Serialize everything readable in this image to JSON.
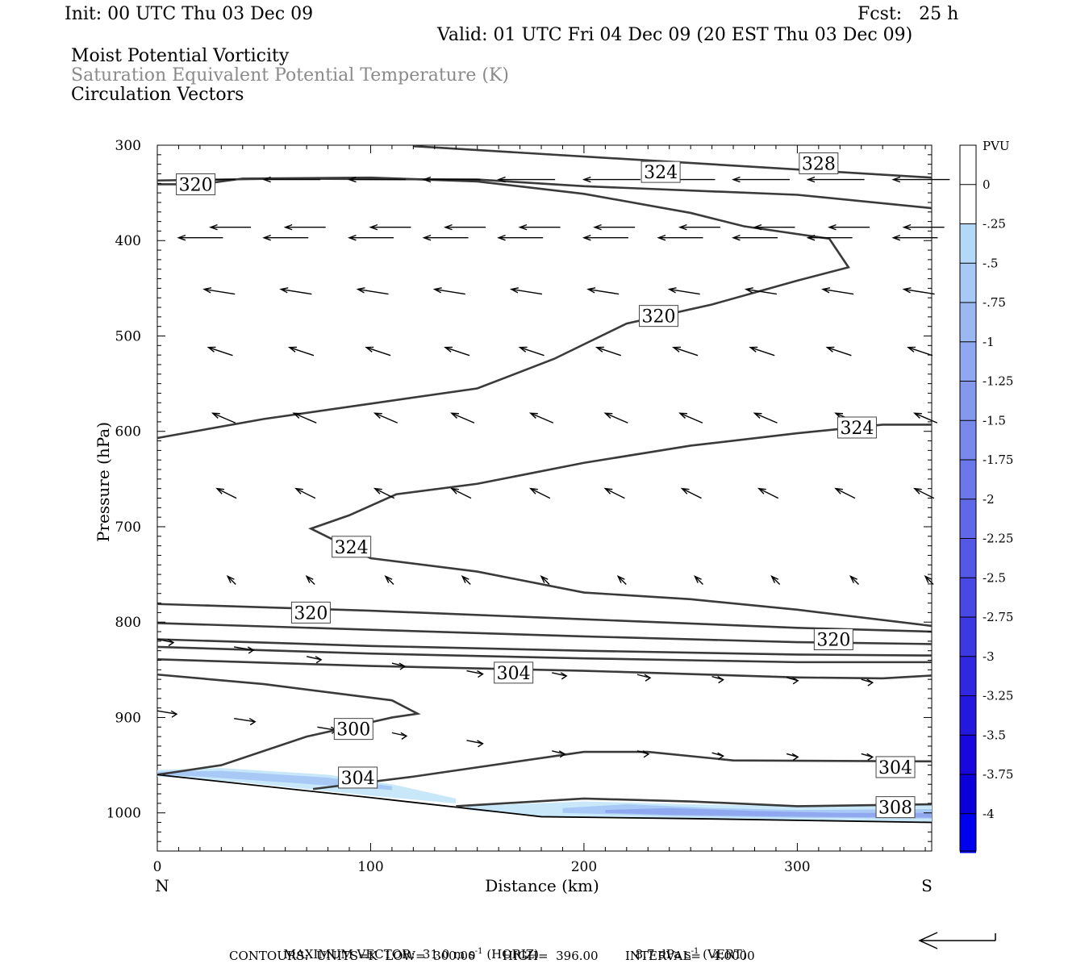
{
  "header": {
    "init": "Init: 00 UTC Thu 03 Dec 09",
    "fcst": "Fcst:   25 h",
    "valid": "Valid: 01 UTC Fri 04 Dec 09 (20 EST Thu 03 Dec 09)",
    "fields": [
      "Moist Potential Vorticity",
      "Saturation Equivalent Potential Temperature (K)",
      "Circulation Vectors"
    ]
  },
  "footer": {
    "max_vector": "MAXIMUM VECTOR:  31.0 m s",
    "horiz": "(HORIZ)",
    "vert_val": "8.7 dPa s",
    "vert": "(VERT)",
    "contours": "CONTOURS:  UNITS=K  LOW=  300.00       HIGH=  396.00       INTERVAL=   4.0000"
  },
  "colors": {
    "contour": "#3a3a3a",
    "pv_shades": [
      "#c8e8fa",
      "#b4d8f7",
      "#a8c8f5",
      "#9cb8f3",
      "#90a8f0",
      "#8498ee",
      "#7888ec",
      "#6c78ea",
      "#6068e8",
      "#5458e6",
      "#4848e4",
      "#3c38e2",
      "#3028e0",
      "#2418de",
      "#1808dc",
      "#0c00da",
      "#0000f0"
    ]
  },
  "chart_data": {
    "type": "cross-section",
    "xlabel": "Distance (km)",
    "ylabel": "Pressure (hPa)",
    "xlim": [
      0,
      363
    ],
    "ylim": [
      1040,
      300
    ],
    "x_ticks": [
      0,
      100,
      200,
      300
    ],
    "y_ticks": [
      300,
      400,
      500,
      600,
      700,
      800,
      900,
      1000
    ],
    "x_end_labels": {
      "left": "N",
      "right": "S"
    },
    "colorbar": {
      "title": "PVU",
      "levels": [
        "0",
        "-.25",
        "-.5",
        "-.75",
        "-1",
        "-1.25",
        "-1.5",
        "-1.75",
        "-2",
        "-2.25",
        "-2.5",
        "-2.75",
        "-3",
        "-3.25",
        "-3.5",
        "-3.75",
        "-4"
      ]
    },
    "contours": [
      {
        "level": 328,
        "points": [
          [
            120,
            301
          ],
          [
            363,
            334
          ]
        ]
      },
      {
        "level": 324,
        "points": [
          [
            0,
            337
          ],
          [
            60,
            335
          ],
          [
            150,
            336
          ],
          [
            200,
            343
          ],
          [
            300,
            352
          ],
          [
            363,
            366
          ]
        ]
      },
      {
        "level": 320,
        "points": [
          [
            0,
            341
          ],
          [
            20,
            341
          ],
          [
            40,
            335
          ],
          [
            100,
            334
          ],
          [
            150,
            338
          ],
          [
            200,
            351
          ],
          [
            250,
            371
          ],
          [
            275,
            385
          ],
          [
            315,
            398
          ],
          [
            324,
            428
          ],
          [
            300,
            442
          ],
          [
            260,
            467
          ],
          [
            220,
            487
          ],
          [
            186,
            524
          ],
          [
            150,
            555
          ],
          [
            100,
            571
          ],
          [
            50,
            587
          ],
          [
            0,
            607
          ]
        ]
      },
      {
        "level": 324,
        "points": [
          [
            363,
            593
          ],
          [
            340,
            593
          ],
          [
            300,
            602
          ],
          [
            250,
            615
          ],
          [
            200,
            633
          ],
          [
            150,
            655
          ],
          [
            112,
            666
          ],
          [
            90,
            688
          ],
          [
            72,
            702
          ],
          [
            100,
            733
          ],
          [
            150,
            747
          ],
          [
            200,
            769
          ],
          [
            250,
            776
          ],
          [
            300,
            787
          ],
          [
            363,
            804
          ]
        ]
      },
      {
        "level": 320,
        "points": [
          [
            0,
            781
          ],
          [
            100,
            788
          ],
          [
            200,
            797
          ],
          [
            300,
            806
          ],
          [
            363,
            810
          ]
        ]
      },
      {
        "level": 316,
        "points": [
          [
            0,
            801
          ],
          [
            100,
            808
          ],
          [
            200,
            815
          ],
          [
            300,
            821
          ],
          [
            363,
            823
          ]
        ]
      },
      {
        "level": 312,
        "points": [
          [
            0,
            818
          ],
          [
            100,
            825
          ],
          [
            200,
            830
          ],
          [
            300,
            834
          ],
          [
            363,
            835
          ]
        ]
      },
      {
        "level": 308,
        "points": [
          [
            0,
            826
          ],
          [
            100,
            833
          ],
          [
            200,
            838
          ],
          [
            300,
            842
          ],
          [
            363,
            842
          ]
        ]
      },
      {
        "level": 304,
        "points": [
          [
            0,
            839
          ],
          [
            100,
            846
          ],
          [
            200,
            851
          ],
          [
            300,
            858
          ],
          [
            340,
            859
          ],
          [
            363,
            856
          ]
        ]
      },
      {
        "level": 300,
        "points": [
          [
            0,
            855
          ],
          [
            50,
            865
          ],
          [
            110,
            882
          ],
          [
            122,
            896
          ],
          [
            110,
            900
          ],
          [
            70,
            920
          ],
          [
            30,
            950
          ],
          [
            0,
            960
          ]
        ]
      },
      {
        "level": 304,
        "points": [
          [
            73,
            975
          ],
          [
            120,
            962
          ],
          [
            200,
            936
          ],
          [
            230,
            936
          ],
          [
            270,
            945
          ],
          [
            363,
            946
          ]
        ]
      },
      {
        "level": 308,
        "points": [
          [
            140,
            993
          ],
          [
            200,
            985
          ],
          [
            250,
            988
          ],
          [
            300,
            993
          ],
          [
            363,
            991
          ]
        ]
      }
    ],
    "contour_labels": [
      {
        "text": "320",
        "x": 18,
        "p": 341
      },
      {
        "text": "324",
        "x": 236,
        "p": 328
      },
      {
        "text": "328",
        "x": 310,
        "p": 319
      },
      {
        "text": "320",
        "x": 235,
        "p": 479
      },
      {
        "text": "324",
        "x": 328,
        "p": 596
      },
      {
        "text": "324",
        "x": 91,
        "p": 721
      },
      {
        "text": "320",
        "x": 72,
        "p": 790
      },
      {
        "text": "320",
        "x": 317,
        "p": 818
      },
      {
        "text": "304",
        "x": 167,
        "p": 853
      },
      {
        "text": "300",
        "x": 92,
        "p": 912
      },
      {
        "text": "304",
        "x": 94,
        "p": 963
      },
      {
        "text": "304",
        "x": 346,
        "p": 952
      },
      {
        "text": "308",
        "x": 346,
        "p": 994
      }
    ],
    "pv_region": {
      "note": "shaded negative MPV near surface",
      "values_pvu": [
        -0.25,
        -0.5,
        -0.75,
        -1.0
      ]
    },
    "surface": [
      [
        0,
        960
      ],
      [
        100,
        984
      ],
      [
        180,
        1004
      ],
      [
        250,
        1006
      ],
      [
        363,
        1010
      ]
    ]
  }
}
